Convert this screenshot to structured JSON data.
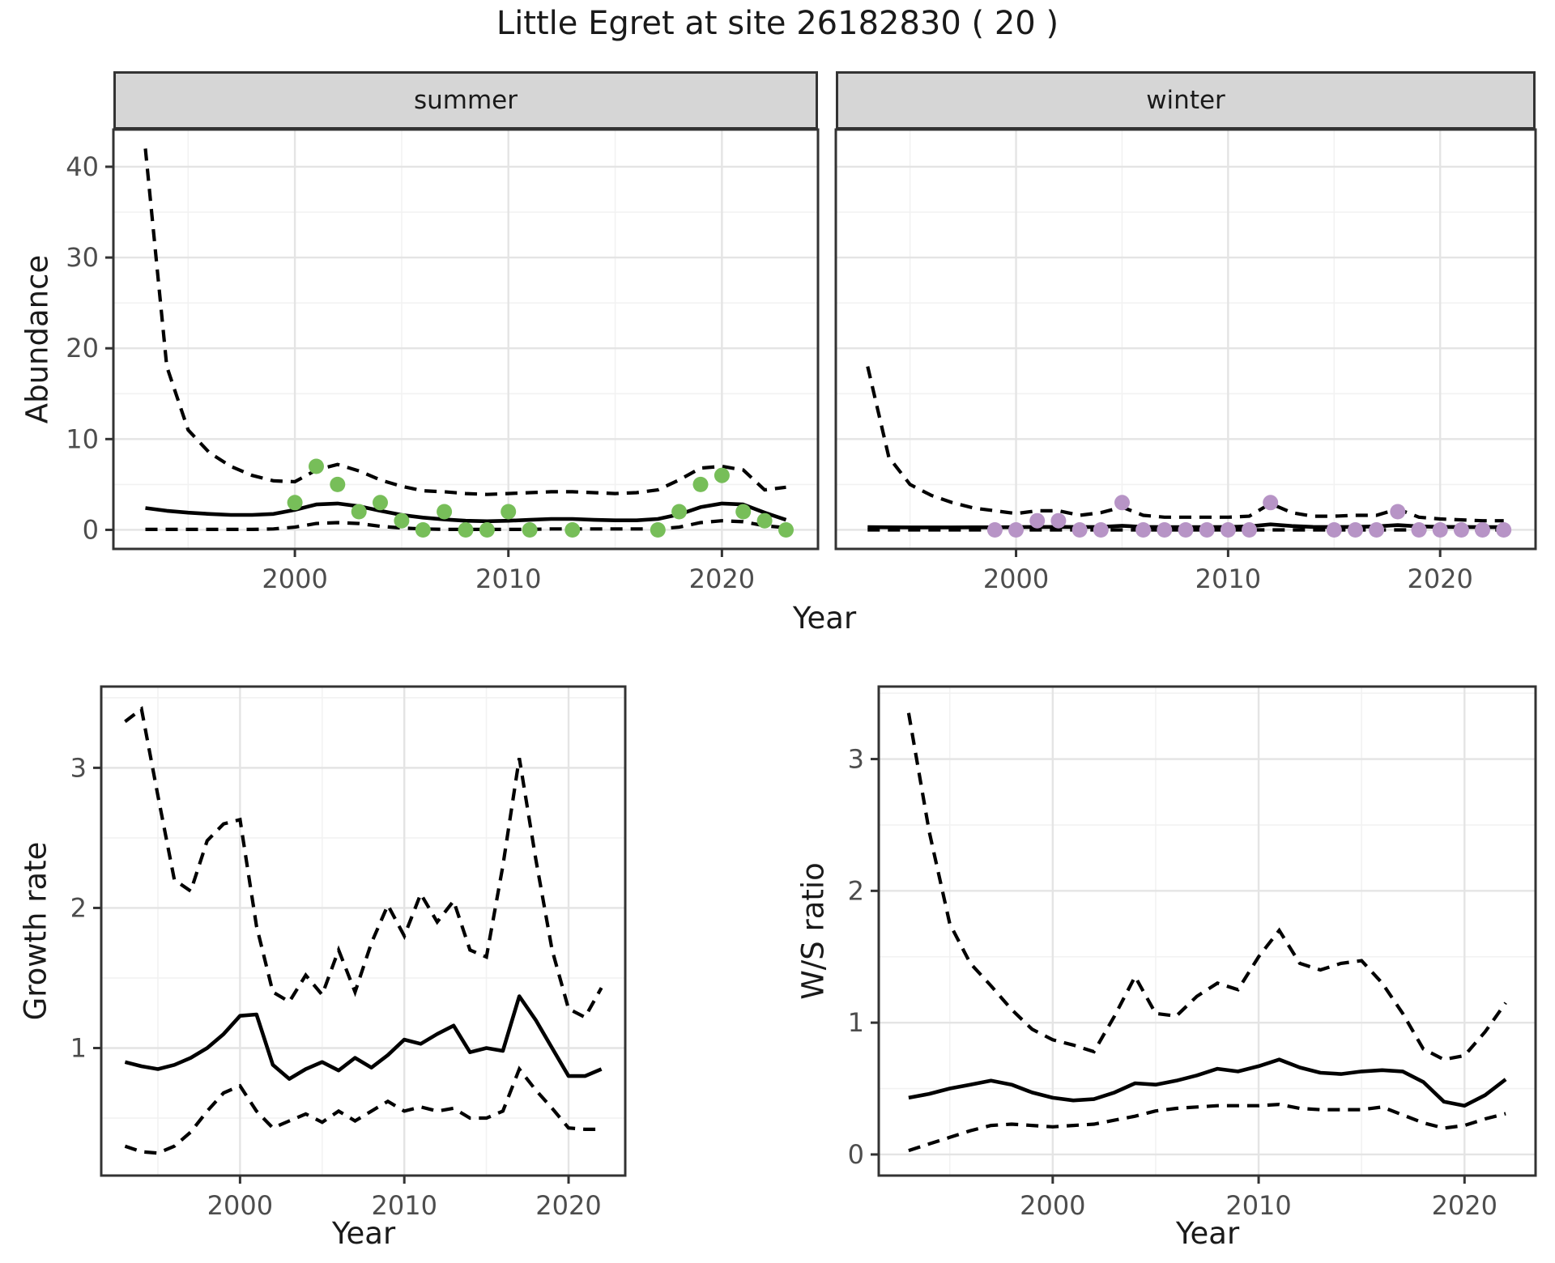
{
  "title": "Little Egret at site 26182830 ( 20 )",
  "facets": {
    "summer": "summer",
    "winter": "winter"
  },
  "axes": {
    "abundance": "Abundance",
    "year": "Year",
    "growth_rate": "Growth rate",
    "ws_ratio": "W/S ratio"
  },
  "colors": {
    "summer_point": "#77be59",
    "winter_point": "#b794c6",
    "line": "#000000",
    "strip_fill": "#d6d6d6",
    "panel_border": "#333333",
    "grid_major": "#e4e4e4",
    "grid_minor": "#f2f2f2",
    "tick_text": "#4d4d4d"
  },
  "chart_data": [
    {
      "id": "summer",
      "type": "line",
      "facet": "summer",
      "xlabel": "Year",
      "ylabel": "Abundance",
      "x_domain": [
        1991.5,
        2024.5
      ],
      "y_domain": [
        -2.1,
        44.1
      ],
      "x_ticks": [
        2000,
        2010,
        2020
      ],
      "x_minor": [
        1995,
        2005,
        2015
      ],
      "y_ticks": [
        0,
        10,
        20,
        30,
        40
      ],
      "y_minor": [
        5,
        15,
        25,
        35
      ],
      "years": [
        1993,
        1994,
        1995,
        1996,
        1997,
        1998,
        1999,
        2000,
        2001,
        2002,
        2003,
        2004,
        2005,
        2006,
        2007,
        2008,
        2009,
        2010,
        2011,
        2012,
        2013,
        2014,
        2015,
        2016,
        2017,
        2018,
        2019,
        2020,
        2021,
        2022,
        2023
      ],
      "mean": [
        2.4,
        2.1,
        1.9,
        1.75,
        1.65,
        1.65,
        1.75,
        2.2,
        2.8,
        2.9,
        2.6,
        2.1,
        1.65,
        1.35,
        1.15,
        1.0,
        0.95,
        1.0,
        1.1,
        1.2,
        1.2,
        1.1,
        1.05,
        1.05,
        1.2,
        1.7,
        2.5,
        2.9,
        2.8,
        1.9,
        1.1
      ],
      "upper": [
        42,
        18,
        11,
        8.5,
        7,
        6,
        5.4,
        5.3,
        6.6,
        7.2,
        6.5,
        5.5,
        4.8,
        4.3,
        4.2,
        4.0,
        3.9,
        4.0,
        4.1,
        4.2,
        4.2,
        4.1,
        4.0,
        4.1,
        4.4,
        5.5,
        6.8,
        7.0,
        6.6,
        4.4,
        4.7
      ],
      "lower": [
        0.05,
        0.05,
        0.05,
        0.05,
        0.05,
        0.05,
        0.1,
        0.3,
        0.7,
        0.8,
        0.7,
        0.4,
        0.2,
        0.1,
        0.05,
        0.05,
        0.05,
        0.05,
        0.05,
        0.1,
        0.1,
        0.1,
        0.1,
        0.1,
        0.1,
        0.3,
        0.8,
        1.0,
        0.9,
        0.45,
        0.25
      ],
      "points": {
        "years": [
          2000,
          2001,
          2002,
          2003,
          2004,
          2005,
          2006,
          2007,
          2008,
          2009,
          2010,
          2011,
          2013,
          2017,
          2018,
          2019,
          2020,
          2021,
          2022,
          2023
        ],
        "values": [
          3,
          7,
          5,
          2,
          3,
          1,
          0,
          2,
          0,
          0,
          2,
          0,
          0,
          0,
          2,
          5,
          6,
          2,
          1,
          0
        ]
      },
      "point_color": "#77be59"
    },
    {
      "id": "winter",
      "type": "line",
      "facet": "winter",
      "xlabel": "Year",
      "ylabel": "Abundance",
      "x_domain": [
        1991.5,
        2024.5
      ],
      "y_domain": [
        -2.1,
        44.1
      ],
      "x_ticks": [
        2000,
        2010,
        2020
      ],
      "x_minor": [
        1995,
        2005,
        2015
      ],
      "y_ticks": [
        0,
        10,
        20,
        30,
        40
      ],
      "y_minor": [
        5,
        15,
        25,
        35
      ],
      "years": [
        1993,
        1994,
        1995,
        1996,
        1997,
        1998,
        1999,
        2000,
        2001,
        2002,
        2003,
        2004,
        2005,
        2006,
        2007,
        2008,
        2009,
        2010,
        2011,
        2012,
        2013,
        2014,
        2015,
        2016,
        2017,
        2018,
        2019,
        2020,
        2021,
        2022,
        2023
      ],
      "mean": [
        0.3,
        0.28,
        0.27,
        0.27,
        0.27,
        0.28,
        0.28,
        0.3,
        0.32,
        0.33,
        0.32,
        0.33,
        0.45,
        0.33,
        0.3,
        0.3,
        0.3,
        0.32,
        0.38,
        0.6,
        0.42,
        0.33,
        0.32,
        0.33,
        0.38,
        0.52,
        0.38,
        0.33,
        0.32,
        0.3,
        0.3
      ],
      "upper": [
        18,
        8,
        5,
        3.8,
        3.0,
        2.4,
        2.1,
        1.8,
        2.1,
        2.1,
        1.6,
        1.9,
        2.5,
        1.6,
        1.4,
        1.4,
        1.4,
        1.4,
        1.5,
        2.9,
        1.9,
        1.5,
        1.5,
        1.6,
        1.6,
        2.3,
        1.4,
        1.2,
        1.1,
        1.0,
        1.0
      ],
      "lower": [
        0,
        0,
        0,
        0,
        0,
        0,
        0,
        0,
        0,
        0,
        0,
        0,
        0,
        0,
        0,
        0,
        0,
        0,
        0,
        0,
        0,
        0,
        0,
        0,
        0,
        0,
        0,
        0,
        0,
        0,
        0
      ],
      "points": {
        "years": [
          1999,
          2000,
          2001,
          2002,
          2003,
          2004,
          2005,
          2006,
          2007,
          2008,
          2009,
          2010,
          2011,
          2012,
          2015,
          2016,
          2017,
          2018,
          2019,
          2020,
          2021,
          2022,
          2023
        ],
        "values": [
          0,
          0,
          1,
          1,
          0,
          0,
          3,
          0,
          0,
          0,
          0,
          0,
          0,
          3,
          0,
          0,
          0,
          2,
          0,
          0,
          0,
          0,
          0
        ]
      },
      "point_color": "#b794c6"
    },
    {
      "id": "growth_rate",
      "type": "line",
      "xlabel": "Year",
      "ylabel": "Growth rate",
      "x_domain": [
        1991.55,
        2023.45
      ],
      "y_domain": [
        0.09,
        3.58
      ],
      "x_ticks": [
        2000,
        2010,
        2020
      ],
      "x_minor": [
        1995,
        2005,
        2015
      ],
      "y_ticks": [
        1,
        2,
        3
      ],
      "y_minor": [
        0.5,
        1.5,
        2.5,
        3.5
      ],
      "years": [
        1993,
        1994,
        1995,
        1996,
        1997,
        1998,
        1999,
        2000,
        2001,
        2002,
        2003,
        2004,
        2005,
        2006,
        2007,
        2008,
        2009,
        2010,
        2011,
        2012,
        2013,
        2014,
        2015,
        2016,
        2017,
        2018,
        2019,
        2020,
        2021,
        2022
      ],
      "mean": [
        0.9,
        0.87,
        0.85,
        0.88,
        0.93,
        1.0,
        1.1,
        1.23,
        1.24,
        0.88,
        0.78,
        0.85,
        0.9,
        0.84,
        0.93,
        0.86,
        0.95,
        1.06,
        1.03,
        1.1,
        1.16,
        0.97,
        1.0,
        0.98,
        1.37,
        1.2,
        1.0,
        0.8,
        0.8,
        0.85
      ],
      "upper": [
        3.33,
        3.42,
        2.8,
        2.2,
        2.12,
        2.48,
        2.6,
        2.63,
        1.87,
        1.4,
        1.33,
        1.52,
        1.38,
        1.7,
        1.4,
        1.75,
        2.02,
        1.8,
        2.1,
        1.9,
        2.05,
        1.7,
        1.65,
        2.3,
        3.07,
        2.35,
        1.7,
        1.28,
        1.22,
        1.43
      ],
      "lower": [
        0.3,
        0.26,
        0.25,
        0.3,
        0.4,
        0.55,
        0.68,
        0.73,
        0.55,
        0.43,
        0.48,
        0.53,
        0.47,
        0.55,
        0.48,
        0.55,
        0.62,
        0.55,
        0.58,
        0.55,
        0.57,
        0.5,
        0.5,
        0.55,
        0.85,
        0.7,
        0.57,
        0.43,
        0.42,
        0.42
      ]
    },
    {
      "id": "ws_ratio",
      "type": "line",
      "xlabel": "Year",
      "ylabel": "W/S ratio",
      "x_domain": [
        1991.55,
        2023.45
      ],
      "y_domain": [
        -0.16,
        3.55
      ],
      "x_ticks": [
        2000,
        2010,
        2020
      ],
      "x_minor": [
        1995,
        2005,
        2015
      ],
      "y_ticks": [
        0,
        1,
        2,
        3
      ],
      "y_minor": [
        0.5,
        1.5,
        2.5,
        3.5
      ],
      "years": [
        1993,
        1994,
        1995,
        1996,
        1997,
        1998,
        1999,
        2000,
        2001,
        2002,
        2003,
        2004,
        2005,
        2006,
        2007,
        2008,
        2009,
        2010,
        2011,
        2012,
        2013,
        2014,
        2015,
        2016,
        2017,
        2018,
        2019,
        2020,
        2021,
        2022
      ],
      "mean": [
        0.43,
        0.46,
        0.5,
        0.53,
        0.56,
        0.53,
        0.47,
        0.43,
        0.41,
        0.42,
        0.47,
        0.54,
        0.53,
        0.56,
        0.6,
        0.65,
        0.63,
        0.67,
        0.72,
        0.66,
        0.62,
        0.61,
        0.63,
        0.64,
        0.63,
        0.55,
        0.4,
        0.37,
        0.45,
        0.57
      ],
      "upper": [
        3.35,
        2.45,
        1.75,
        1.45,
        1.28,
        1.1,
        0.95,
        0.87,
        0.83,
        0.78,
        1.05,
        1.35,
        1.07,
        1.05,
        1.2,
        1.3,
        1.25,
        1.5,
        1.7,
        1.45,
        1.4,
        1.45,
        1.47,
        1.3,
        1.07,
        0.8,
        0.72,
        0.75,
        0.93,
        1.15
      ],
      "lower": [
        0.03,
        0.08,
        0.13,
        0.18,
        0.22,
        0.23,
        0.22,
        0.21,
        0.22,
        0.23,
        0.26,
        0.29,
        0.33,
        0.35,
        0.36,
        0.37,
        0.37,
        0.37,
        0.38,
        0.35,
        0.34,
        0.34,
        0.34,
        0.36,
        0.3,
        0.24,
        0.2,
        0.22,
        0.27,
        0.31
      ]
    }
  ]
}
